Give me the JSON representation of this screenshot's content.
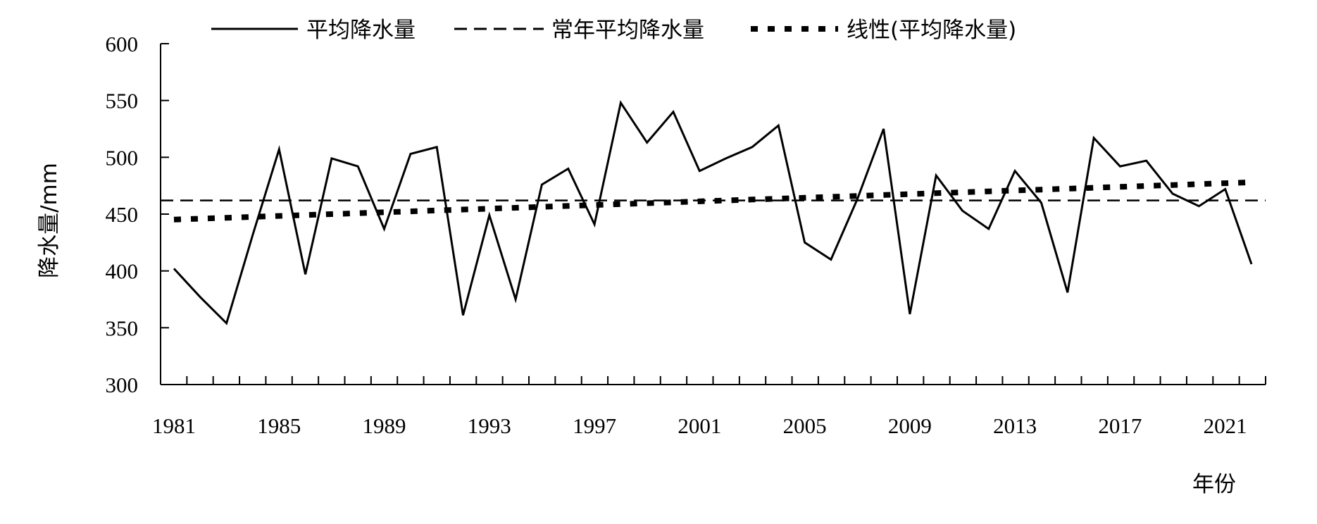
{
  "chart_data": {
    "type": "line",
    "title": "",
    "xlabel": "年份",
    "ylabel": "降水量/mm",
    "ylim": [
      300,
      600
    ],
    "xlim": [
      1981,
      2022
    ],
    "yticks": [
      600,
      550,
      500,
      450,
      400,
      350,
      300
    ],
    "xticks": [
      1981,
      1985,
      1989,
      1993,
      1997,
      2001,
      2005,
      2009,
      2013,
      2017,
      2021
    ],
    "grid": false,
    "legend_position": "top",
    "x": [
      1981,
      1982,
      1983,
      1984,
      1985,
      1986,
      1987,
      1988,
      1989,
      1990,
      1991,
      1992,
      1993,
      1994,
      1995,
      1996,
      1997,
      1998,
      1999,
      2000,
      2001,
      2002,
      2003,
      2004,
      2005,
      2006,
      2007,
      2008,
      2009,
      2010,
      2011,
      2012,
      2013,
      2014,
      2015,
      2016,
      2017,
      2018,
      2019,
      2020,
      2021,
      2022
    ],
    "series": [
      {
        "name": "平均降水量",
        "style": "solid",
        "values": [
          402,
          377,
          354,
          432,
          507,
          397,
          499,
          492,
          437,
          503,
          509,
          361,
          449,
          375,
          476,
          490,
          441,
          548,
          513,
          540,
          488,
          499,
          509,
          528,
          425,
          410,
          463,
          525,
          362,
          484,
          453,
          437,
          488,
          460,
          381,
          517,
          492,
          497,
          468,
          457,
          472,
          406
        ]
      },
      {
        "name": "常年平均降水量",
        "style": "dashed",
        "values": [
          462,
          462,
          462,
          462,
          462,
          462,
          462,
          462,
          462,
          462,
          462,
          462,
          462,
          462,
          462,
          462,
          462,
          462,
          462,
          462,
          462,
          462,
          462,
          462,
          462,
          462,
          462,
          462,
          462,
          462,
          462,
          462,
          462,
          462,
          462,
          462,
          462,
          462,
          462,
          462,
          462,
          462
        ]
      },
      {
        "name": "线性(平均降水量)",
        "style": "dotted",
        "values": [
          445.2,
          446.0,
          446.8,
          447.6,
          448.4,
          449.2,
          450.0,
          450.8,
          451.6,
          452.4,
          453.2,
          454.0,
          454.8,
          455.6,
          456.4,
          457.2,
          458.0,
          458.8,
          459.6,
          460.4,
          461.2,
          462.0,
          462.8,
          463.6,
          464.4,
          465.2,
          466.0,
          466.8,
          467.6,
          468.4,
          469.2,
          470.0,
          470.8,
          471.6,
          472.4,
          473.2,
          474.0,
          474.8,
          475.6,
          476.4,
          477.2,
          478.0
        ]
      }
    ]
  }
}
